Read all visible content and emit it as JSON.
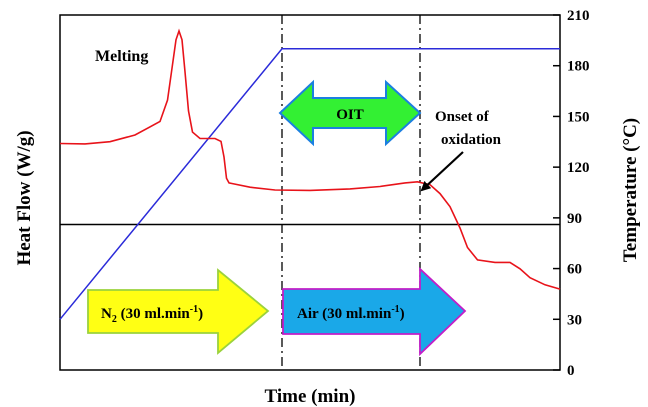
{
  "chart_data": {
    "type": "line",
    "title": "",
    "xlabel": "Time (min)",
    "ylabel_left": "Heat Flow (W/g)",
    "ylabel_right": "Temperature (°C)",
    "right_axis": {
      "ylim": [
        0,
        210
      ],
      "ticks": [
        0,
        30,
        60,
        90,
        120,
        150,
        180,
        210
      ]
    },
    "left_axis_ticks": false,
    "x_ticks": false,
    "grid": false,
    "series": [
      {
        "color": "#2b2bd9",
        "axis": "right",
        "points": [
          [
            0.0,
            30
          ],
          [
            0.444,
            190
          ],
          [
            1.0,
            190
          ]
        ]
      },
      {
        "color": "#e8131a",
        "axis": "left-relative",
        "points": [
          [
            0.0,
            0.638
          ],
          [
            0.05,
            0.637
          ],
          [
            0.1,
            0.643
          ],
          [
            0.15,
            0.662
          ],
          [
            0.2,
            0.7
          ],
          [
            0.215,
            0.76
          ],
          [
            0.225,
            0.86
          ],
          [
            0.232,
            0.93
          ],
          [
            0.238,
            0.955
          ],
          [
            0.244,
            0.93
          ],
          [
            0.25,
            0.84
          ],
          [
            0.257,
            0.73
          ],
          [
            0.265,
            0.67
          ],
          [
            0.28,
            0.652
          ],
          [
            0.31,
            0.652
          ],
          [
            0.322,
            0.644
          ],
          [
            0.328,
            0.6
          ],
          [
            0.333,
            0.54
          ],
          [
            0.338,
            0.527
          ],
          [
            0.345,
            0.525
          ],
          [
            0.38,
            0.515
          ],
          [
            0.43,
            0.507
          ],
          [
            0.5,
            0.506
          ],
          [
            0.58,
            0.51
          ],
          [
            0.64,
            0.517
          ],
          [
            0.69,
            0.527
          ],
          [
            0.715,
            0.53
          ],
          [
            0.74,
            0.522
          ],
          [
            0.76,
            0.497
          ],
          [
            0.78,
            0.46
          ],
          [
            0.8,
            0.4
          ],
          [
            0.815,
            0.345
          ],
          [
            0.835,
            0.31
          ],
          [
            0.87,
            0.303
          ],
          [
            0.9,
            0.303
          ],
          [
            0.92,
            0.285
          ],
          [
            0.94,
            0.26
          ],
          [
            0.97,
            0.24
          ],
          [
            1.0,
            0.228
          ]
        ]
      }
    ],
    "baseline": {
      "color": "#000000",
      "y_rel": 0.41
    },
    "dividers": [
      {
        "x_rel": 0.444,
        "style": "dash-dot",
        "color": "#000000"
      },
      {
        "x_rel": 0.72,
        "style": "dash-dot",
        "color": "#000000"
      }
    ],
    "annotations": {
      "melting": "Melting",
      "onset_line1": "Onset of",
      "onset_line2": "oxidation",
      "oit": "OIT",
      "n2_main": "N",
      "n2_sub": "2",
      "n2_rest": " (30 ml.min",
      "n2_sup": "-1",
      "n2_close": ")",
      "air_main": "Air (30 ml.min",
      "air_sup": "-1",
      "air_close": ")"
    },
    "colors": {
      "oit_arrow_fill": "#33f033",
      "oit_arrow_stroke": "#1b7fe0",
      "n2_arrow_fill": "#ffff14",
      "n2_arrow_stroke": "#9bd23c",
      "air_arrow_fill": "#1aa8e8",
      "air_arrow_stroke": "#c21ec8",
      "onset_arrow": "#000000"
    }
  }
}
